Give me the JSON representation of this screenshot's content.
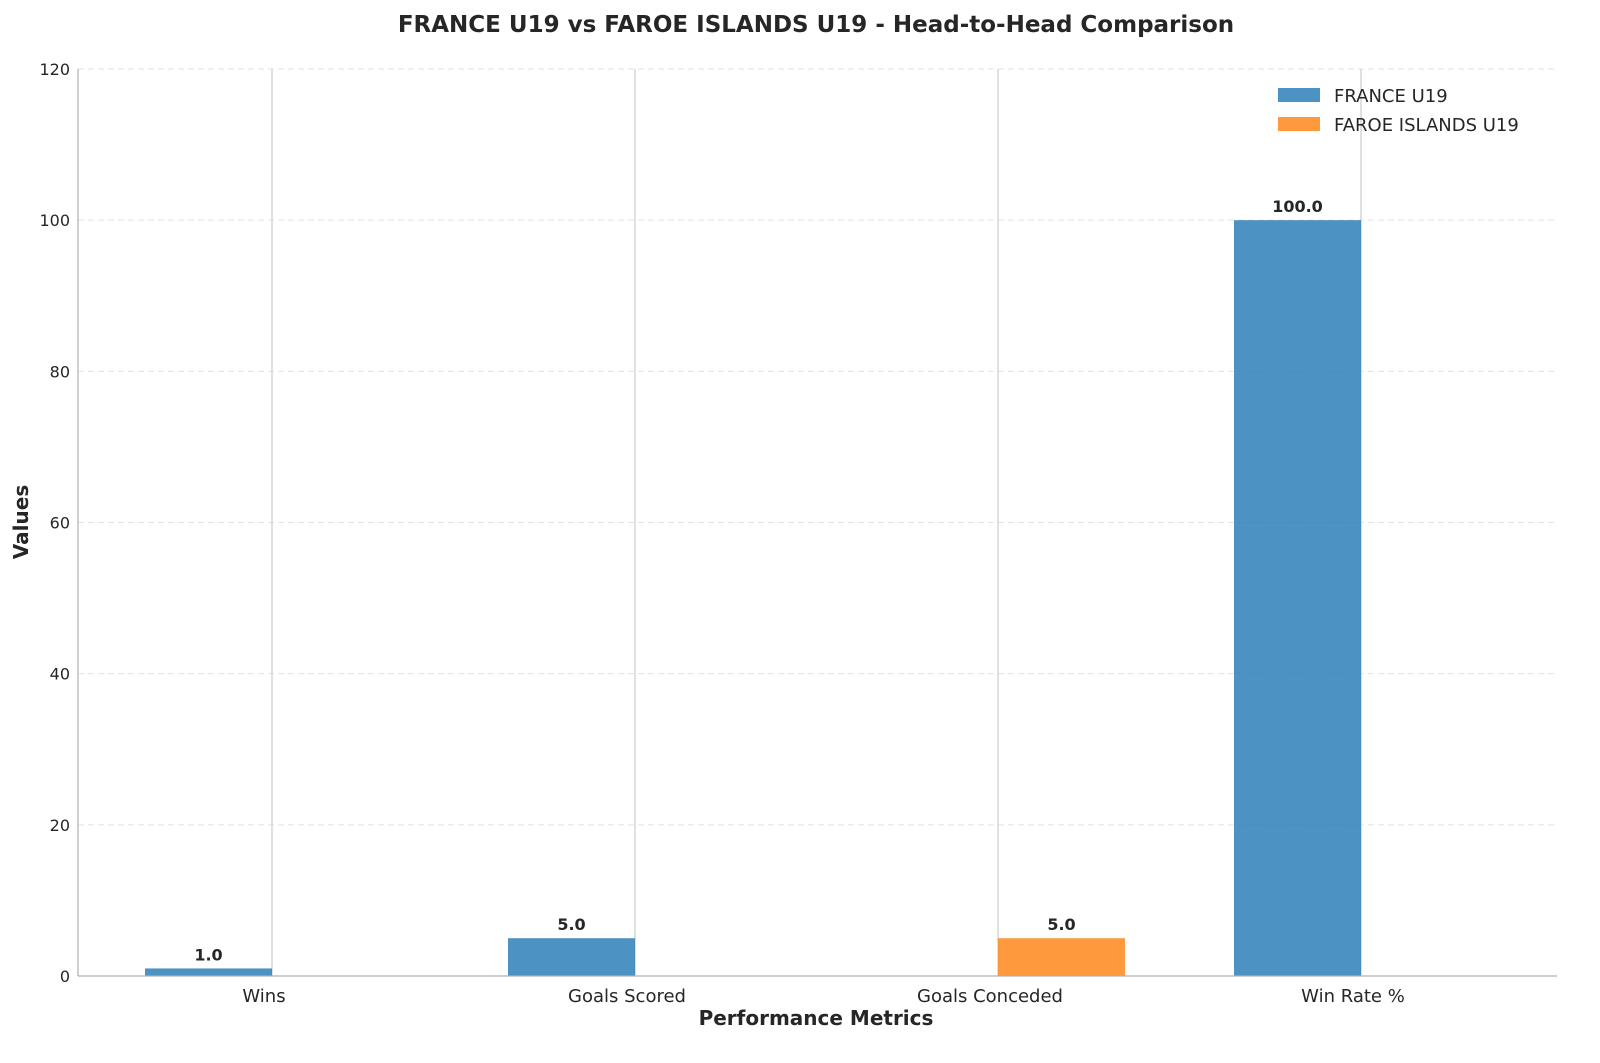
{
  "chart_data": {
    "type": "bar",
    "title": "FRANCE U19 vs FAROE ISLANDS U19 - Head-to-Head Comparison",
    "xlabel": "Performance Metrics",
    "ylabel": "Values",
    "categories": [
      "Wins",
      "Goals Scored",
      "Goals Conceded",
      "Win Rate %"
    ],
    "series": [
      {
        "name": "FRANCE U19",
        "color": "#1f77b4",
        "values": [
          1.0,
          5.0,
          0.0,
          100.0
        ]
      },
      {
        "name": "FAROE ISLANDS U19",
        "color": "#ff7f0e",
        "values": [
          0.0,
          0.0,
          5.0,
          0.0
        ]
      }
    ],
    "data_labels": [
      {
        "series": 0,
        "category": 0,
        "text": "1.0"
      },
      {
        "series": 0,
        "category": 1,
        "text": "5.0"
      },
      {
        "series": 1,
        "category": 2,
        "text": "5.0"
      },
      {
        "series": 0,
        "category": 3,
        "text": "100.0"
      }
    ],
    "ylim": [
      0,
      120
    ],
    "yticks": [
      "0",
      "20",
      "40",
      "60",
      "80",
      "100",
      "120"
    ],
    "grid": "y-dashed",
    "legend": "top-right"
  }
}
